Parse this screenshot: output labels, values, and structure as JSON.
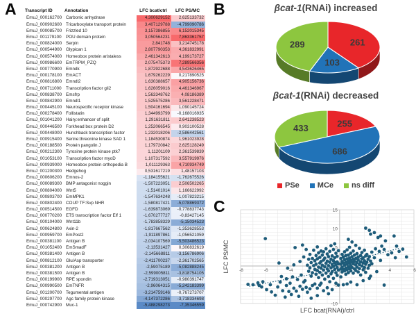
{
  "panel_letters": {
    "a": "A",
    "b": "B",
    "c": "C"
  },
  "table": {
    "headers": [
      "Transcript ID",
      "Annotation",
      "LFC bcat/ctrl",
      "LFC PS/MC"
    ],
    "color_scale": {
      "max_color": "#F8696B",
      "mid_color": "#FCFCFF",
      "min_color": "#5A8AC6"
    },
    "rows": [
      [
        "EmuJ_000162700",
        "Carbonic anhydrase",
        "4,300629152",
        "2,625133732"
      ],
      [
        "EmuJ_000902600",
        "Tricarboxylate transport protein",
        "3,407129788",
        "-4,799090786"
      ],
      [
        "EmuJ_000085700",
        "Frizzled 10",
        "3,157386855",
        "6,152015345"
      ],
      [
        "EmuJ_001179100",
        "POU domain protein",
        "3,050564231",
        "7,863361757"
      ],
      [
        "EmuJ_000824000",
        "Serpin",
        "2,841748",
        "3,214745178"
      ],
      [
        "EmuJ_000544900",
        "Glypican 1",
        "2,807790353",
        "4,361832991"
      ],
      [
        "EmuJ_000574000",
        "Homeobox protein aristaless",
        "2,461342613",
        "4,199173727"
      ],
      [
        "EmuJ_000986600",
        "EmTRPM_PZQ",
        "2,075475373",
        "7,289566356"
      ],
      [
        "EmuJ_000770900",
        "Emndk",
        "1,872922688",
        "4,543626465"
      ],
      [
        "EmuJ_000178100",
        "EmACT",
        "1,679262229",
        "0,217890525"
      ],
      [
        "EmuJ_000816800",
        "Emndl2",
        "1,630388657",
        "4,905156736"
      ],
      [
        "EmuJ_000711000",
        "Transcription factor gli2",
        "1,626059016",
        "4,461346967"
      ],
      [
        "EmuJ_000838700",
        "Emsfrp",
        "1,563348762",
        "4,08186389"
      ],
      [
        "EmuJ_000842900",
        "Emndl1",
        "1,525575286",
        "3,561228471"
      ],
      [
        "EmuJ_000445100",
        "Neurospecific receptor kinase",
        "1,504161694",
        "1,090145724"
      ],
      [
        "EmuJ_000278400",
        "Follistatin",
        "1,344993799",
        "-0,168016935"
      ],
      [
        "EmuJ_001041200",
        "Hairy:enhancer of split",
        "1,291631811",
        "2,641238523"
      ],
      [
        "EmuJ_000446500",
        "Forkhead box protein D2",
        "1,252066545",
        "0,903100528"
      ],
      [
        "EmuJ_000448000",
        "Hunchback transcription factor",
        "1,232018206",
        "-2,586442561"
      ],
      [
        "EmuJ_000915400",
        "Serine:threonine kinase SAD 1",
        "1,184530874",
        "1,961023928"
      ],
      [
        "EmuJ_000188500",
        "Protein pangolin J",
        "1,179720842",
        "2,625128249"
      ],
      [
        "EmuJ_000212300",
        "Tyrosine protein kinase ptk7",
        "1,11201109",
        "2,361539839"
      ],
      [
        "EmuJ_001053100",
        "Transcription factor myoD",
        "1,107317592",
        "3,557919976"
      ],
      [
        "EmuJ_000939000",
        "Homeobox protein orthopedia B",
        "1,011129363",
        "4,710934749"
      ],
      [
        "EmuJ_001200300",
        "Hedgehog",
        "0,531617219",
        "1,48157103"
      ],
      [
        "EmuJ_000606200",
        "Emnos-2",
        "-1,184155621",
        "-1,762675526"
      ],
      [
        "EmuJ_000089300",
        "BMP antagonist noggin",
        "-1,507223051",
        "2,506502265"
      ],
      [
        "EmuJ_000804000",
        "Wnt5",
        "-1,51401014",
        "1,166622992"
      ],
      [
        "EmuJ_000803700",
        "EmMPK1",
        "-1,547634248",
        "-1,007823215"
      ],
      [
        "EmuJ_000802400",
        "COUP TF:Svp NHR",
        "-1,580817421",
        "-5,078869372"
      ],
      [
        "EmuJ_000514500",
        "EGFD",
        "-1,639873069",
        "-0,778837743"
      ],
      [
        "EmuJ_000770200",
        "ETS transcription factor Elf 1",
        "-1,670277727",
        "-0,83427145"
      ],
      [
        "EmuJ_000104000",
        "Wnt11b",
        "-1,783858329",
        "-5,15034523"
      ],
      [
        "EmuJ_000624800",
        "Axin-2",
        "-1,817667562",
        "-1,353628553"
      ],
      [
        "EmuJ_000959700",
        "EmPost2",
        "-1,911897861",
        "-1,056521059"
      ],
      [
        "EmuJ_000381100",
        "Antigen B",
        "-2,034107569",
        "-5,503486523"
      ],
      [
        "EmuJ_001052400",
        "EmSmadF",
        "-2,13531427",
        "0,306832619"
      ],
      [
        "EmuJ_000381400",
        "Antigen B",
        "-2,145668811",
        "-3,156786906"
      ],
      [
        "EmuJ_000812100",
        "Glu/Asp transporter",
        "-2,411700237",
        "-2,361702565"
      ],
      [
        "EmuJ_000381200",
        "Antigen B",
        "-2,59075189",
        "-5,082888245"
      ],
      [
        "EmuJ_000381500",
        "Antigen B",
        "-2,599005811",
        "-3,818754105"
      ],
      [
        "EmuJ_000199900",
        "RPE spondin",
        "-2,719313051",
        "-0,980391747"
      ],
      [
        "EmuJ_000990500",
        "EmTNFR",
        "-2,96064315",
        "-5,242183399"
      ],
      [
        "EmuJ_001200700",
        "Tegumental antigen",
        "-3,214759146",
        "-0,767273707"
      ],
      [
        "EmuJ_000297700",
        "Agc family protein kinase",
        "-4,147372286",
        "-3,718334698"
      ],
      [
        "EmuJ_000742900",
        "Muc-1",
        "-5,488298273",
        "-7,35346559"
      ]
    ]
  },
  "legend": [
    {
      "label": "PSe",
      "color": "#E8262A"
    },
    {
      "label": "MCe",
      "color": "#2173B8"
    },
    {
      "label": "ns diff",
      "color": "#8DC63F"
    }
  ],
  "chart_data": [
    {
      "type": "pie",
      "title": "βcat-1(RNAi) increased",
      "title_italic": "βcat-1",
      "title_rest": "(RNAi) increased",
      "labels": [
        "PSe",
        "MCe",
        "ns diff"
      ],
      "values": [
        261,
        103,
        289
      ],
      "colors": [
        "#E8262A",
        "#2173B8",
        "#8DC63F"
      ],
      "legend_position": "none",
      "style": "3d"
    },
    {
      "type": "pie",
      "title": "βcat-1(RNAi) decreased",
      "title_italic": "βcat-1",
      "title_rest": "(RNAi) decreased",
      "labels": [
        "PSe",
        "MCe",
        "ns diff"
      ],
      "values": [
        255,
        686,
        433
      ],
      "colors": [
        "#E8262A",
        "#2173B8",
        "#8DC63F"
      ],
      "legend_position": "bottom",
      "style": "3d"
    },
    {
      "type": "scatter",
      "title": "",
      "xlabel": "LFC bcat(RNAi)/ctrl",
      "ylabel": "LFC PS/MC",
      "xlim": [
        -8,
        6
      ],
      "ylim": [
        -10,
        15
      ],
      "x_ticks": [
        -8,
        -6,
        -4,
        -2,
        2,
        4,
        6
      ],
      "y_ticks": [
        -10,
        -5,
        5,
        10,
        15
      ],
      "grid": true,
      "point_color": "#1E5C7A",
      "trendlines": [
        {
          "from": [
            -7.3,
            -5.4
          ],
          "to": [
            -1.4,
            -1.7
          ]
        },
        {
          "from": [
            1.2,
            1.6
          ],
          "to": [
            4.9,
            4.8
          ]
        }
      ],
      "points": [
        [
          -6.0,
          7.3
        ],
        [
          -7.4,
          -4.9
        ],
        [
          -7.0,
          -5.0
        ],
        [
          -6.6,
          -4.5
        ],
        [
          -6.5,
          -5.2
        ],
        [
          -6.3,
          -5.6
        ],
        [
          -6.2,
          -4.2
        ],
        [
          -5.9,
          -6.3
        ],
        [
          -5.6,
          -5.0
        ],
        [
          -5.5,
          -6.9
        ],
        [
          -5.2,
          -7.8
        ],
        [
          -5.0,
          -5.6
        ],
        [
          -4.8,
          -4.3
        ],
        [
          -4.6,
          -6.6
        ],
        [
          -4.4,
          -8.3
        ],
        [
          -4.3,
          -5.2
        ],
        [
          -4.1,
          -6.8
        ],
        [
          -4.0,
          -4.6
        ],
        [
          -3.9,
          -7.6
        ],
        [
          -3.7,
          -5.9
        ],
        [
          -3.5,
          -6.7
        ],
        [
          -3.3,
          -8.1
        ],
        [
          -3.2,
          -5.4
        ],
        [
          -3.0,
          -6.2
        ],
        [
          -4.7,
          -2.8
        ],
        [
          -4.3,
          -3.4
        ],
        [
          -3.8,
          -2.9
        ],
        [
          -3.4,
          -3.6
        ],
        [
          -3.1,
          -2.4
        ],
        [
          -2.9,
          -4.3
        ],
        [
          -2.7,
          -5.7
        ],
        [
          -2.6,
          -7.0
        ],
        [
          -2.4,
          -6.1
        ],
        [
          -2.2,
          -5.2
        ],
        [
          -2.0,
          -4.8
        ],
        [
          -1.8,
          -5.9
        ],
        [
          -1.6,
          -5.1
        ],
        [
          -1.3,
          -6.6
        ],
        [
          -0.9,
          -7.4
        ],
        [
          -1.8,
          -7.9
        ],
        [
          -2.3,
          -8.6
        ],
        [
          -4.9,
          0.8
        ],
        [
          -4.2,
          -0.6
        ],
        [
          -3.7,
          0.3
        ],
        [
          -3.6,
          4.9
        ],
        [
          -3.2,
          1.2
        ],
        [
          -3.0,
          5.6
        ],
        [
          -2.9,
          2.4
        ],
        [
          -2.7,
          4.4
        ],
        [
          -2.8,
          -3.9
        ],
        [
          -2.6,
          0.2
        ],
        [
          -2.5,
          -1.4
        ],
        [
          -2.5,
          1.8
        ],
        [
          -2.4,
          -0.5
        ],
        [
          -2.4,
          3.1
        ],
        [
          -2.3,
          -2.7
        ],
        [
          -2.3,
          0.9
        ],
        [
          -2.2,
          2.0
        ],
        [
          -2.2,
          -1.8
        ],
        [
          -2.1,
          0.1
        ],
        [
          -2.1,
          4.2
        ],
        [
          -2.0,
          -0.9
        ],
        [
          -2.0,
          1.4
        ],
        [
          -1.9,
          -2.2
        ],
        [
          -1.9,
          2.8
        ],
        [
          -1.9,
          0.5
        ],
        [
          -1.8,
          -1.2
        ],
        [
          -1.8,
          1.9
        ],
        [
          -1.8,
          5.1
        ],
        [
          -1.7,
          -0.3
        ],
        [
          -1.7,
          3.5
        ],
        [
          -1.7,
          -3.1
        ],
        [
          -1.6,
          0.8
        ],
        [
          -1.6,
          -1.7
        ],
        [
          -1.6,
          2.3
        ],
        [
          -1.5,
          -0.6
        ],
        [
          -1.5,
          4.0
        ],
        [
          -1.5,
          1.2
        ],
        [
          -1.5,
          -4.6
        ],
        [
          -1.4,
          -2.4
        ],
        [
          -1.4,
          0.2
        ],
        [
          -1.4,
          2.9
        ],
        [
          -1.3,
          -1.1
        ],
        [
          -1.3,
          1.6
        ],
        [
          -1.3,
          3.8
        ],
        [
          -1.2,
          -0.2
        ],
        [
          -1.2,
          -3.5
        ],
        [
          -1.2,
          2.1
        ],
        [
          -1.1,
          0.7
        ],
        [
          -1.1,
          -1.9
        ],
        [
          -1.1,
          4.6
        ],
        [
          -1.0,
          -0.8
        ],
        [
          -1.0,
          1.3
        ],
        [
          -1.0,
          3.2
        ],
        [
          -1.0,
          -5.8
        ],
        [
          -0.9,
          -2.8
        ],
        [
          -0.9,
          0.1
        ],
        [
          -0.9,
          2.5
        ],
        [
          -0.9,
          -1.3
        ],
        [
          -0.8,
          1.0
        ],
        [
          -0.8,
          -4.2
        ],
        [
          -0.8,
          3.9
        ],
        [
          -0.7,
          -0.5
        ],
        [
          -0.7,
          1.8
        ],
        [
          -0.7,
          -2.1
        ],
        [
          -0.7,
          5.4
        ],
        [
          -0.6,
          0.4
        ],
        [
          -0.6,
          2.7
        ],
        [
          -0.6,
          -1.5
        ],
        [
          -0.6,
          -6.3
        ],
        [
          -0.5,
          -0.1
        ],
        [
          -0.5,
          1.4
        ],
        [
          -0.5,
          -3.3
        ],
        [
          -0.5,
          4.4
        ],
        [
          -0.4,
          0.9
        ],
        [
          -0.4,
          -0.9
        ],
        [
          -0.4,
          2.2
        ],
        [
          -0.4,
          5.9
        ],
        [
          -0.3,
          -1.8
        ],
        [
          -0.3,
          0.3
        ],
        [
          -0.3,
          3.4
        ],
        [
          -0.3,
          -4.6
        ],
        [
          -0.2,
          1.1
        ],
        [
          -0.2,
          -0.4
        ],
        [
          -0.2,
          2.6
        ],
        [
          -0.2,
          -2.5
        ],
        [
          -0.1,
          0.6
        ],
        [
          -0.1,
          -1.1
        ],
        [
          -0.1,
          4.1
        ],
        [
          -0.1,
          -5.1
        ],
        [
          0.1,
          0.5
        ],
        [
          0.1,
          -0.8
        ],
        [
          0.1,
          2.0
        ],
        [
          0.1,
          -2.9
        ],
        [
          0.2,
          1.2
        ],
        [
          0.2,
          -0.3
        ],
        [
          0.2,
          3.1
        ],
        [
          0.2,
          -1.6
        ],
        [
          0.3,
          0.8
        ],
        [
          0.3,
          -0.9
        ],
        [
          0.3,
          2.4
        ],
        [
          0.3,
          -5.0
        ],
        [
          0.4,
          0.2
        ],
        [
          0.4,
          1.7
        ],
        [
          0.4,
          -1.3
        ],
        [
          0.4,
          3.8
        ],
        [
          0.5,
          -0.6
        ],
        [
          0.5,
          1.0
        ],
        [
          0.5,
          2.8
        ],
        [
          0.5,
          -2.2
        ],
        [
          0.6,
          0.5
        ],
        [
          0.6,
          -1.0
        ],
        [
          0.6,
          1.9
        ],
        [
          0.6,
          4.3
        ],
        [
          0.6,
          -4.8
        ],
        [
          0.7,
          -0.2
        ],
        [
          0.7,
          1.3
        ],
        [
          0.7,
          -1.8
        ],
        [
          0.7,
          2.9
        ],
        [
          0.7,
          7.1
        ],
        [
          0.8,
          0.7
        ],
        [
          0.8,
          -0.7
        ],
        [
          0.8,
          2.1
        ],
        [
          0.8,
          5.0
        ],
        [
          0.9,
          1.5
        ],
        [
          0.9,
          -1.3
        ],
        [
          0.9,
          3.4
        ],
        [
          0.9,
          0.1
        ],
        [
          0.9,
          -4.3
        ],
        [
          1.0,
          -0.4
        ],
        [
          1.0,
          1.0
        ],
        [
          1.0,
          2.5
        ],
        [
          1.0,
          6.4
        ],
        [
          1.1,
          0.6
        ],
        [
          1.1,
          -1.9
        ],
        [
          1.1,
          1.8
        ],
        [
          1.1,
          4.0
        ],
        [
          1.2,
          -0.8
        ],
        [
          1.2,
          1.2
        ],
        [
          1.2,
          2.9
        ],
        [
          1.3,
          0.3
        ],
        [
          1.3,
          -1.2
        ],
        [
          1.3,
          2.0
        ],
        [
          1.3,
          5.5
        ],
        [
          1.4,
          0.9
        ],
        [
          1.4,
          -0.3
        ],
        [
          1.4,
          3.3
        ],
        [
          1.4,
          -5.0
        ],
        [
          1.5,
          1.6
        ],
        [
          1.5,
          -1.6
        ],
        [
          1.5,
          2.4
        ],
        [
          1.6,
          0.4
        ],
        [
          1.6,
          -0.7
        ],
        [
          1.6,
          4.7
        ],
        [
          1.7,
          1.1
        ],
        [
          1.7,
          2.8
        ],
        [
          1.7,
          -2.4
        ],
        [
          1.8,
          0.0
        ],
        [
          1.8,
          1.9
        ],
        [
          1.8,
          3.6
        ],
        [
          1.9,
          -1.0
        ],
        [
          1.9,
          0.8
        ],
        [
          1.9,
          2.2
        ],
        [
          1.9,
          -3.9
        ],
        [
          2.0,
          1.4
        ],
        [
          2.0,
          -0.4
        ],
        [
          2.0,
          4.2
        ],
        [
          2.1,
          0.5
        ],
        [
          2.1,
          2.7
        ],
        [
          2.1,
          -1.7
        ],
        [
          2.2,
          1.0
        ],
        [
          2.2,
          3.1
        ],
        [
          2.3,
          -0.6
        ],
        [
          2.3,
          1.8
        ],
        [
          2.4,
          0.2
        ],
        [
          2.4,
          2.5
        ],
        [
          2.4,
          -3.3
        ],
        [
          2.5,
          1.3
        ],
        [
          2.5,
          -2.7
        ],
        [
          2.6,
          0.6
        ],
        [
          2.6,
          3.7
        ],
        [
          2.1,
          10.1
        ],
        [
          2.4,
          9.5
        ],
        [
          2.5,
          8.5
        ],
        [
          2.8,
          8.9
        ],
        [
          3.1,
          7.6
        ],
        [
          3.3,
          8.0
        ],
        [
          3.7,
          6.7
        ],
        [
          3.4,
          5.3
        ],
        [
          4.4,
          8.0
        ],
        [
          4.6,
          5.3
        ],
        [
          4.5,
          2.2
        ],
        [
          2.9,
          4.6
        ],
        [
          3.2,
          3.9
        ],
        [
          3.6,
          4.4
        ],
        [
          3.9,
          3.0
        ],
        [
          4.2,
          3.5
        ],
        [
          4.8,
          3.9
        ],
        [
          5.1,
          4.5
        ],
        [
          5.4,
          2.4
        ],
        [
          3.6,
          -5.1
        ],
        [
          3.0,
          -1.5
        ],
        [
          3.3,
          1.5
        ],
        [
          2.8,
          2.2
        ]
      ]
    }
  ]
}
